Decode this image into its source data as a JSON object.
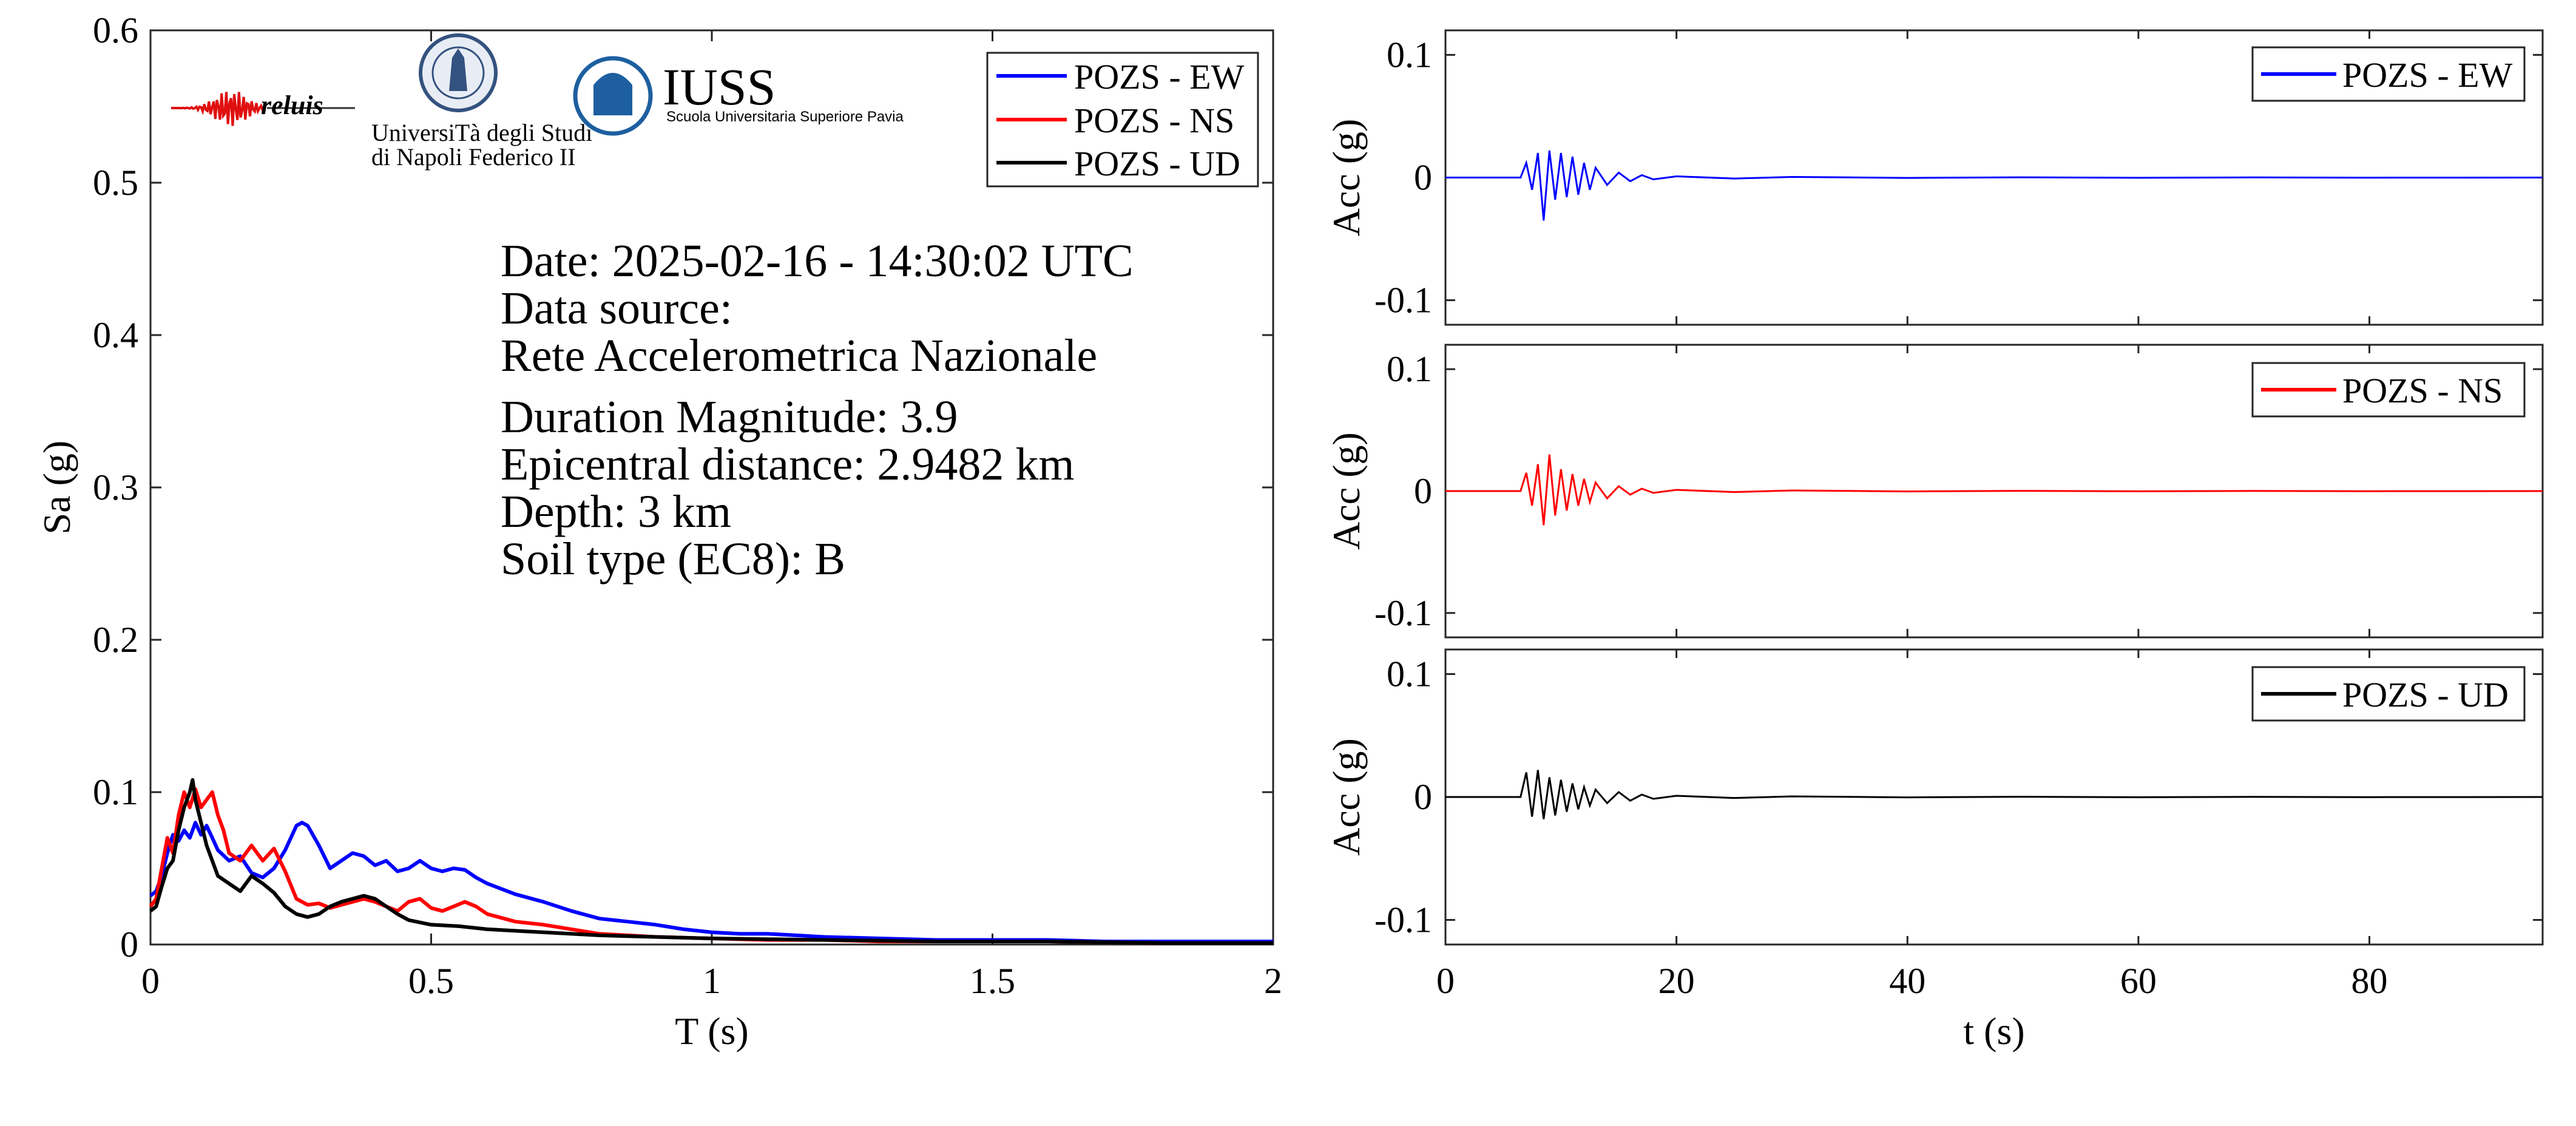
{
  "colors": {
    "EW": "#0000ff",
    "NS": "#ff0000",
    "UD": "#000000",
    "axis": "#262626"
  },
  "logos": {
    "reluis": "reluis",
    "unina_line1": "UniversiTà degli Studi",
    "unina_line2": "di Napoli Federico II",
    "iuss_title": "IUSS",
    "iuss_subtitle": "Scuola Universitaria Superiore Pavia"
  },
  "info": {
    "date": "Date: 2025-02-16 - 14:30:02 UTC",
    "source_label": "Data source:",
    "source_value": "Rete Accelerometrica Nazionale",
    "magnitude": "Duration Magnitude: 3.9",
    "distance": "Epicentral distance: 2.9482 km",
    "depth": "Depth: 3 km",
    "soil": "Soil type (EC8): B"
  },
  "chart_data": [
    {
      "type": "line",
      "xlabel": "T (s)",
      "ylabel": "Sa (g)",
      "xlim": [
        0,
        2
      ],
      "ylim": [
        0,
        0.6
      ],
      "xticks": [
        0,
        0.5,
        1,
        1.5,
        2
      ],
      "xtick_labels": [
        "0",
        "0.5",
        "1",
        "1.5",
        "2"
      ],
      "yticks": [
        0,
        0.1,
        0.2,
        0.3,
        0.4,
        0.5,
        0.6
      ],
      "ytick_labels": [
        "0",
        "0.1",
        "0.2",
        "0.3",
        "0.4",
        "0.5",
        "0.6"
      ],
      "legend_position": "top-right",
      "series": [
        {
          "name": "POZS - EW",
          "color": "#0000ff",
          "x": [
            0,
            0.01,
            0.02,
            0.03,
            0.04,
            0.05,
            0.06,
            0.07,
            0.08,
            0.09,
            0.1,
            0.11,
            0.12,
            0.14,
            0.16,
            0.18,
            0.2,
            0.22,
            0.24,
            0.26,
            0.27,
            0.28,
            0.3,
            0.32,
            0.34,
            0.36,
            0.38,
            0.4,
            0.42,
            0.44,
            0.46,
            0.48,
            0.5,
            0.52,
            0.54,
            0.56,
            0.58,
            0.6,
            0.65,
            0.7,
            0.75,
            0.8,
            0.85,
            0.9,
            0.95,
            1,
            1.05,
            1.1,
            1.15,
            1.2,
            1.3,
            1.4,
            1.5,
            1.6,
            1.7,
            1.8,
            1.9,
            2
          ],
          "y": [
            0.032,
            0.035,
            0.045,
            0.06,
            0.072,
            0.068,
            0.075,
            0.07,
            0.08,
            0.072,
            0.078,
            0.07,
            0.062,
            0.055,
            0.058,
            0.047,
            0.044,
            0.05,
            0.062,
            0.078,
            0.08,
            0.078,
            0.065,
            0.05,
            0.055,
            0.06,
            0.058,
            0.052,
            0.055,
            0.048,
            0.05,
            0.055,
            0.05,
            0.048,
            0.05,
            0.049,
            0.044,
            0.04,
            0.033,
            0.028,
            0.022,
            0.017,
            0.015,
            0.013,
            0.01,
            0.008,
            0.007,
            0.007,
            0.006,
            0.005,
            0.004,
            0.003,
            0.003,
            0.003,
            0.002,
            0.002,
            0.002,
            0.002
          ]
        },
        {
          "name": "POZS - NS",
          "color": "#ff0000",
          "x": [
            0,
            0.01,
            0.02,
            0.03,
            0.04,
            0.05,
            0.06,
            0.07,
            0.08,
            0.09,
            0.1,
            0.11,
            0.12,
            0.13,
            0.14,
            0.16,
            0.18,
            0.2,
            0.22,
            0.24,
            0.26,
            0.28,
            0.3,
            0.32,
            0.34,
            0.36,
            0.38,
            0.4,
            0.42,
            0.44,
            0.46,
            0.48,
            0.5,
            0.52,
            0.54,
            0.56,
            0.58,
            0.6,
            0.65,
            0.7,
            0.75,
            0.8,
            0.85,
            0.9,
            1,
            1.1,
            1.2,
            1.3,
            1.4,
            1.5,
            1.6,
            1.8,
            2
          ],
          "y": [
            0.025,
            0.03,
            0.05,
            0.07,
            0.06,
            0.085,
            0.1,
            0.09,
            0.102,
            0.09,
            0.095,
            0.1,
            0.085,
            0.075,
            0.06,
            0.055,
            0.065,
            0.055,
            0.063,
            0.048,
            0.03,
            0.026,
            0.027,
            0.024,
            0.026,
            0.028,
            0.03,
            0.028,
            0.025,
            0.022,
            0.028,
            0.03,
            0.024,
            0.022,
            0.025,
            0.028,
            0.025,
            0.02,
            0.015,
            0.013,
            0.01,
            0.007,
            0.006,
            0.005,
            0.004,
            0.003,
            0.003,
            0.002,
            0.002,
            0.002,
            0.002,
            0.001,
            0.001
          ]
        },
        {
          "name": "POZS - UD",
          "color": "#000000",
          "x": [
            0,
            0.01,
            0.02,
            0.03,
            0.04,
            0.05,
            0.06,
            0.07,
            0.075,
            0.08,
            0.09,
            0.1,
            0.11,
            0.12,
            0.14,
            0.16,
            0.18,
            0.2,
            0.22,
            0.24,
            0.26,
            0.28,
            0.3,
            0.32,
            0.34,
            0.36,
            0.38,
            0.4,
            0.42,
            0.44,
            0.46,
            0.5,
            0.55,
            0.6,
            0.7,
            0.8,
            0.9,
            1,
            1.2,
            1.4,
            1.6,
            1.8,
            2
          ],
          "y": [
            0.022,
            0.025,
            0.038,
            0.05,
            0.055,
            0.075,
            0.09,
            0.1,
            0.108,
            0.095,
            0.08,
            0.065,
            0.055,
            0.045,
            0.04,
            0.035,
            0.045,
            0.04,
            0.034,
            0.025,
            0.02,
            0.018,
            0.02,
            0.025,
            0.028,
            0.03,
            0.032,
            0.03,
            0.025,
            0.02,
            0.016,
            0.013,
            0.012,
            0.01,
            0.008,
            0.006,
            0.005,
            0.004,
            0.003,
            0.002,
            0.002,
            0.001,
            0.001
          ]
        }
      ]
    },
    {
      "type": "line",
      "xlabel": "",
      "ylabel": "Acc (g)",
      "xlim": [
        0,
        95
      ],
      "ylim": [
        -0.12,
        0.12
      ],
      "yticks": [
        -0.1,
        0,
        0.1
      ],
      "ytick_labels": [
        "-0.1",
        "0",
        "0.1"
      ],
      "legend_position": "top-right",
      "series": [
        {
          "name": "POZS - EW",
          "color": "#0000ff",
          "x": [
            0,
            6.5,
            7,
            7.5,
            8,
            8.5,
            9,
            9.5,
            10,
            10.5,
            11,
            11.5,
            12,
            12.5,
            13,
            14,
            15,
            16,
            17,
            18,
            20,
            25,
            30,
            40,
            50,
            60,
            70,
            80,
            95
          ],
          "y": [
            0,
            0,
            0.012,
            -0.01,
            0.02,
            -0.035,
            0.022,
            -0.018,
            0.02,
            -0.016,
            0.017,
            -0.014,
            0.012,
            -0.01,
            0.008,
            -0.006,
            0.004,
            -0.003,
            0.002,
            -0.0015,
            0.001,
            -0.0008,
            0.0005,
            -0.0003,
            0.0002,
            -0.0002,
            0.0001,
            -0.0001,
            0
          ]
        }
      ]
    },
    {
      "type": "line",
      "xlabel": "",
      "ylabel": "Acc (g)",
      "xlim": [
        0,
        95
      ],
      "ylim": [
        -0.12,
        0.12
      ],
      "yticks": [
        -0.1,
        0,
        0.1
      ],
      "ytick_labels": [
        "-0.1",
        "0",
        "0.1"
      ],
      "legend_position": "top-right",
      "series": [
        {
          "name": "POZS - NS",
          "color": "#ff0000",
          "x": [
            0,
            6.5,
            7,
            7.5,
            8,
            8.5,
            9,
            9.5,
            10,
            10.5,
            11,
            11.5,
            12,
            12.5,
            13,
            14,
            15,
            16,
            17,
            18,
            20,
            25,
            30,
            40,
            50,
            60,
            70,
            80,
            95
          ],
          "y": [
            0,
            0,
            0.015,
            -0.012,
            0.022,
            -0.028,
            0.03,
            -0.02,
            0.018,
            -0.016,
            0.014,
            -0.012,
            0.01,
            -0.009,
            0.007,
            -0.006,
            0.004,
            -0.003,
            0.002,
            -0.0015,
            0.001,
            -0.0008,
            0.0005,
            -0.0003,
            0.0002,
            -0.0002,
            0.0001,
            -0.0001,
            0
          ]
        }
      ]
    },
    {
      "type": "line",
      "xlabel": "t (s)",
      "ylabel": "Acc (g)",
      "xlim": [
        0,
        95
      ],
      "ylim": [
        -0.12,
        0.12
      ],
      "xticks": [
        0,
        20,
        40,
        60,
        80
      ],
      "xtick_labels": [
        "0",
        "20",
        "40",
        "60",
        "80"
      ],
      "yticks": [
        -0.1,
        0,
        0.1
      ],
      "ytick_labels": [
        "-0.1",
        "0",
        "0.1"
      ],
      "legend_position": "top-right",
      "series": [
        {
          "name": "POZS - UD",
          "color": "#000000",
          "x": [
            0,
            6.5,
            7,
            7.5,
            8,
            8.5,
            9,
            9.5,
            10,
            10.5,
            11,
            11.5,
            12,
            12.5,
            13,
            14,
            15,
            16,
            17,
            18,
            20,
            25,
            30,
            40,
            50,
            60,
            70,
            80,
            95
          ],
          "y": [
            0,
            0,
            0.02,
            -0.016,
            0.022,
            -0.018,
            0.016,
            -0.015,
            0.014,
            -0.012,
            0.011,
            -0.01,
            0.008,
            -0.007,
            0.006,
            -0.005,
            0.004,
            -0.003,
            0.002,
            -0.0015,
            0.001,
            -0.0008,
            0.0005,
            -0.0003,
            0.0002,
            -0.0002,
            0.0001,
            -0.0001,
            0
          ]
        }
      ]
    }
  ]
}
